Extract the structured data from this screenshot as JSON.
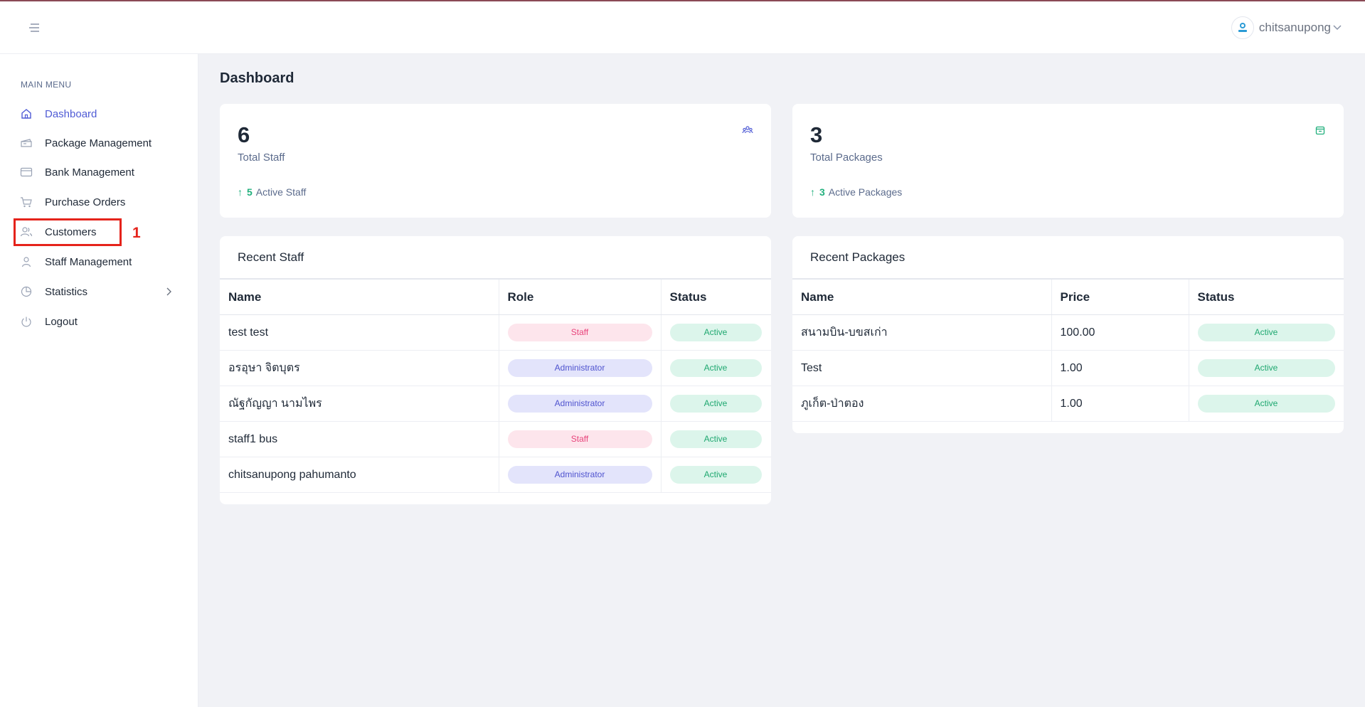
{
  "header": {
    "username": "chitsanupong",
    "avatar_icon": "logo-avatar"
  },
  "sidebar": {
    "menu_title": "MAIN MENU",
    "items": [
      {
        "label": "Dashboard",
        "icon": "home-icon",
        "active": true
      },
      {
        "label": "Package Management",
        "icon": "ticket-icon"
      },
      {
        "label": "Bank Management",
        "icon": "credit-card-icon"
      },
      {
        "label": "Purchase Orders",
        "icon": "cart-icon"
      },
      {
        "label": "Customers",
        "icon": "users-icon"
      },
      {
        "label": "Staff Management",
        "icon": "user-icon"
      },
      {
        "label": "Statistics",
        "icon": "pie-chart-icon"
      },
      {
        "label": "Logout",
        "icon": "power-icon"
      }
    ]
  },
  "annotation": {
    "label": "1"
  },
  "page": {
    "title": "Dashboard"
  },
  "stats": {
    "staff": {
      "value": "6",
      "label": "Total Staff",
      "sub_value": "5",
      "sub_label": "Active Staff",
      "icon": "staff-group-icon"
    },
    "packages": {
      "value": "3",
      "label": "Total Packages",
      "sub_value": "3",
      "sub_label": "Active Packages",
      "icon": "package-icon"
    }
  },
  "recent_staff": {
    "title": "Recent Staff",
    "columns": [
      "Name",
      "Role",
      "Status"
    ],
    "rows": [
      {
        "name": "test test",
        "role": "Staff",
        "status": "Active"
      },
      {
        "name": "อรอุษา จิตบุตร",
        "role": "Administrator",
        "status": "Active"
      },
      {
        "name": "ณัฐกัญญา นามไพร",
        "role": "Administrator",
        "status": "Active"
      },
      {
        "name": "staff1 bus",
        "role": "Staff",
        "status": "Active"
      },
      {
        "name": "chitsanupong pahumanto",
        "role": "Administrator",
        "status": "Active"
      }
    ]
  },
  "recent_packages": {
    "title": "Recent Packages",
    "columns": [
      "Name",
      "Price",
      "Status"
    ],
    "rows": [
      {
        "name": "สนามบิน-บขสเก่า",
        "price": "100.00",
        "status": "Active"
      },
      {
        "name": "Test",
        "price": "1.00",
        "status": "Active"
      },
      {
        "name": "ภูเก็ต-ป่าตอง",
        "price": "1.00",
        "status": "Active"
      }
    ]
  },
  "colors": {
    "accent": "#4f5bd5",
    "success": "#22b07d",
    "annotation": "#e5231b"
  }
}
